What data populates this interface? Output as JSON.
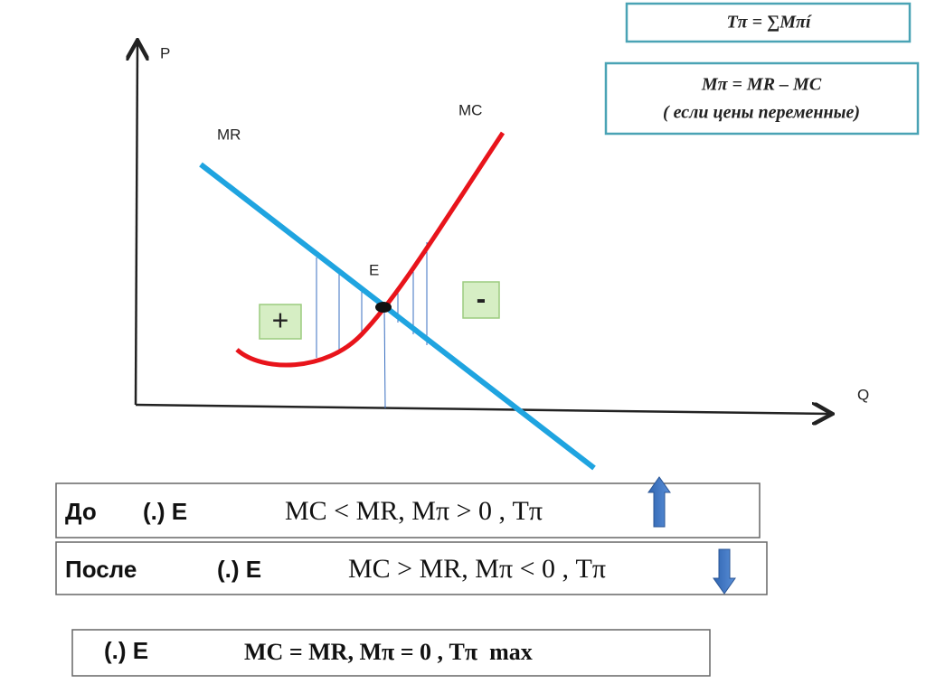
{
  "graph": {
    "y_axis_label": "P",
    "x_axis_label": "Q",
    "mr_label": "MR",
    "mc_label": "MC",
    "point_label": "E",
    "plus_label": "+",
    "minus_label": "-"
  },
  "formulas": {
    "total": "Tπ = ∑Mπí",
    "marginal": "Mπ = MR – MC",
    "note": "( если цены переменные)"
  },
  "statements": [
    {
      "prefix": "До",
      "point": "(.) E",
      "formula": "MC < MR, Mπ > 0 , Tπ"
    },
    {
      "prefix": "После",
      "point": "(.) E",
      "formula": "MC > MR, Mπ < 0 , Tπ"
    },
    {
      "point": "(.) E",
      "formula": "MC = MR, Mπ = 0 , Tπ  max"
    }
  ]
}
